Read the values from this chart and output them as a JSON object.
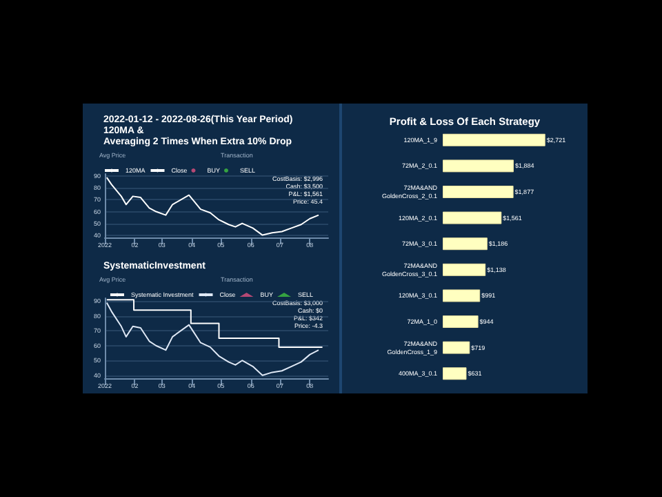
{
  "chart_data": [
    {
      "type": "line",
      "title": "2022-01-12 - 2022-08-26(This Year Period)\n120MA &\nAveraging 2 Times When Extra 10% Drop",
      "annotations": [
        "Avg Price",
        "Transaction",
        "CostBasis: $2,996",
        "Cash: $3,500",
        "P&L: $1,561",
        "Price: 45.4"
      ],
      "xlim": [
        "2022-01-01",
        "2022-08-20"
      ],
      "xticks": [
        {
          "value": "2022-01-01",
          "label": "2022"
        },
        {
          "value": "2022-02-01",
          "label": "02"
        },
        {
          "value": "2022-03-01",
          "label": "03"
        },
        {
          "value": "2022-04-01",
          "label": "04"
        },
        {
          "value": "2022-05-01",
          "label": "05"
        },
        {
          "value": "2022-06-01",
          "label": "06"
        },
        {
          "value": "2022-07-01",
          "label": "07"
        },
        {
          "value": "2022-08-01",
          "label": "08"
        }
      ],
      "ylim": [
        38,
        92
      ],
      "yticks": [
        40,
        50,
        60,
        70,
        80,
        90
      ],
      "grid": "y",
      "legend": "top left",
      "x": [
        "2022-01-03",
        "2022-01-08",
        "2022-01-18",
        "2022-01-23",
        "2022-01-30",
        "2022-02-07",
        "2022-02-16",
        "2022-02-23",
        "2022-03-05",
        "2022-03-12",
        "2022-03-29",
        "2022-04-03",
        "2022-04-10",
        "2022-04-20",
        "2022-04-29",
        "2022-05-09",
        "2022-05-16",
        "2022-05-23",
        "2022-06-03",
        "2022-06-13",
        "2022-06-23",
        "2022-07-03",
        "2022-07-13",
        "2022-07-23",
        "2022-08-01",
        "2022-08-10"
      ],
      "series": [
        {
          "name": "120MA",
          "color": "#ffffff",
          "values": [
            null,
            null,
            null,
            null,
            null,
            null,
            null,
            null,
            null,
            null,
            null,
            null,
            null,
            null,
            null,
            null,
            null,
            null,
            null,
            null,
            null,
            null,
            null,
            null,
            null,
            null
          ]
        },
        {
          "name": "Close",
          "color": "#ffffff",
          "values": [
            89,
            83,
            73,
            66,
            73,
            72,
            63,
            60,
            57,
            66,
            74,
            69,
            62,
            59,
            53,
            49,
            47,
            50,
            46,
            40,
            42,
            43,
            46,
            49,
            54,
            57
          ]
        },
        {
          "name": "BUY",
          "type": "scatter",
          "color": "#e05080",
          "values": [
            null,
            null,
            null,
            null,
            null,
            null,
            null,
            null,
            null,
            null,
            null,
            null,
            null,
            null,
            null,
            null,
            null,
            null,
            null,
            null,
            null,
            null,
            null,
            null,
            null,
            null
          ]
        },
        {
          "name": "SELL",
          "type": "scatter",
          "color": "#40c040",
          "values": [
            null,
            null,
            null,
            null,
            null,
            null,
            null,
            null,
            null,
            null,
            null,
            null,
            null,
            null,
            null,
            null,
            null,
            null,
            null,
            null,
            null,
            null,
            null,
            null,
            null,
            null
          ]
        }
      ]
    },
    {
      "type": "line",
      "title": "SystematicInvestment",
      "annotations": [
        "Avg Price",
        "Transaction",
        "CostBasis: $3,000",
        "Cash: $0",
        "P&L: $342",
        "Price: -4.3"
      ],
      "xlim": [
        "2022-01-01",
        "2022-08-20"
      ],
      "xticks": [
        {
          "value": "2022-01-01",
          "label": "2022"
        },
        {
          "value": "2022-02-01",
          "label": "02"
        },
        {
          "value": "2022-03-01",
          "label": "03"
        },
        {
          "value": "2022-04-01",
          "label": "04"
        },
        {
          "value": "2022-05-01",
          "label": "05"
        },
        {
          "value": "2022-06-01",
          "label": "06"
        },
        {
          "value": "2022-07-01",
          "label": "07"
        },
        {
          "value": "2022-08-01",
          "label": "08"
        }
      ],
      "ylim": [
        38,
        92
      ],
      "yticks": [
        40,
        50,
        60,
        70,
        80,
        90
      ],
      "grid": "y",
      "legend": "top",
      "x": [
        "2022-01-03",
        "2022-01-08",
        "2022-01-18",
        "2022-01-23",
        "2022-01-30",
        "2022-02-07",
        "2022-02-16",
        "2022-02-23",
        "2022-03-05",
        "2022-03-12",
        "2022-03-29",
        "2022-04-03",
        "2022-04-10",
        "2022-04-20",
        "2022-04-29",
        "2022-05-09",
        "2022-05-16",
        "2022-05-23",
        "2022-06-03",
        "2022-06-13",
        "2022-06-23",
        "2022-07-03",
        "2022-07-13",
        "2022-07-23",
        "2022-08-01",
        "2022-08-10"
      ],
      "series": [
        {
          "name": "Systematic Investment",
          "type": "step",
          "color": "#ffffff",
          "x": [
            "2022-01-03",
            "2022-01-31",
            "2022-03-31",
            "2022-04-29",
            "2022-06-30",
            "2022-08-14"
          ],
          "values": [
            91,
            84,
            75,
            65,
            59,
            59
          ]
        },
        {
          "name": "Close",
          "color": "#dfe8f5",
          "values": [
            89,
            83,
            73,
            66,
            73,
            72,
            63,
            60,
            57,
            66,
            74,
            69,
            62,
            59,
            53,
            49,
            47,
            50,
            46,
            40,
            42,
            43,
            46,
            49,
            54,
            57
          ]
        },
        {
          "name": "BUY",
          "type": "scatter",
          "color": "#e05080",
          "values": [
            null,
            null,
            null,
            null,
            null,
            null,
            null,
            null,
            null,
            null,
            null,
            null,
            null,
            null,
            null,
            null,
            null,
            null,
            null,
            null,
            null,
            null,
            null,
            null,
            null,
            null
          ]
        },
        {
          "name": "SELL",
          "type": "scatter",
          "color": "#40c040",
          "values": [
            null,
            null,
            null,
            null,
            null,
            null,
            null,
            null,
            null,
            null,
            null,
            null,
            null,
            null,
            null,
            null,
            null,
            null,
            null,
            null,
            null,
            null,
            null,
            null,
            null,
            null
          ]
        }
      ]
    },
    {
      "type": "bar",
      "orientation": "horizontal",
      "title": "Profit & Loss Of Each Strategy",
      "categories": [
        "120MA_1_9",
        "72MA_2_0.1",
        "72MA&AND\nGoldenCross_2_0.1",
        "120MA_2_0.1",
        "72MA_3_0.1",
        "72MA&AND\nGoldenCross_3_0.1",
        "120MA_3_0.1",
        "72MA_1_0",
        "72MA&AND\nGoldenCross_1_9",
        "400MA_3_0.1"
      ],
      "values": [
        2721,
        1884,
        1877,
        1561,
        1186,
        1138,
        991,
        944,
        719,
        631
      ],
      "value_labels": [
        "$2,721",
        "$1,884",
        "$1,877",
        "$1,561",
        "$1,186",
        "$1,138",
        "$991",
        "$944",
        "$719",
        "$631"
      ],
      "color": "#ffffc0"
    }
  ]
}
